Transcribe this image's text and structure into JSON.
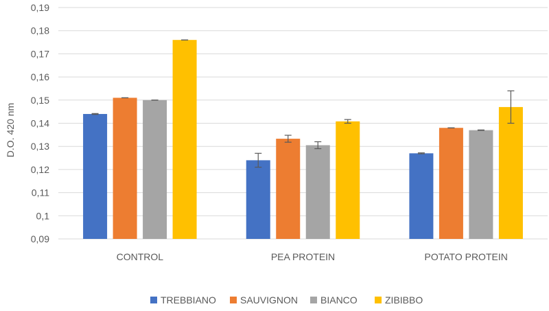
{
  "chart_data": {
    "type": "bar",
    "title": "",
    "xlabel": "",
    "ylabel": "D.O. 420 nm",
    "ylim": [
      0.09,
      0.19
    ],
    "ytick_step": 0.01,
    "yticks": [
      "0,09",
      "0,1",
      "0,11",
      "0,12",
      "0,13",
      "0,14",
      "0,15",
      "0,16",
      "0,17",
      "0,18",
      "0,19"
    ],
    "grid": true,
    "legend_position": "bottom",
    "categories": [
      "CONTROL",
      "PEA PROTEIN",
      "POTATO PROTEIN"
    ],
    "series": [
      {
        "name": "TREBBIANO",
        "color": "#4472C4",
        "values": [
          0.144,
          0.124,
          0.127
        ],
        "errors": [
          0.0002,
          0.003,
          0.0002
        ]
      },
      {
        "name": "SAUVIGNON",
        "color": "#ED7D31",
        "values": [
          0.151,
          0.1333,
          0.138
        ],
        "errors": [
          0.0,
          0.0015,
          0.0
        ]
      },
      {
        "name": "BIANCO",
        "color": "#A5A5A5",
        "values": [
          0.15,
          0.1305,
          0.137
        ],
        "errors": [
          0.0,
          0.0015,
          0.0001
        ]
      },
      {
        "name": "ZIBIBBO",
        "color": "#FFC000",
        "values": [
          0.176,
          0.1408,
          0.147
        ],
        "errors": [
          0.0,
          0.0008,
          0.007
        ]
      }
    ]
  }
}
